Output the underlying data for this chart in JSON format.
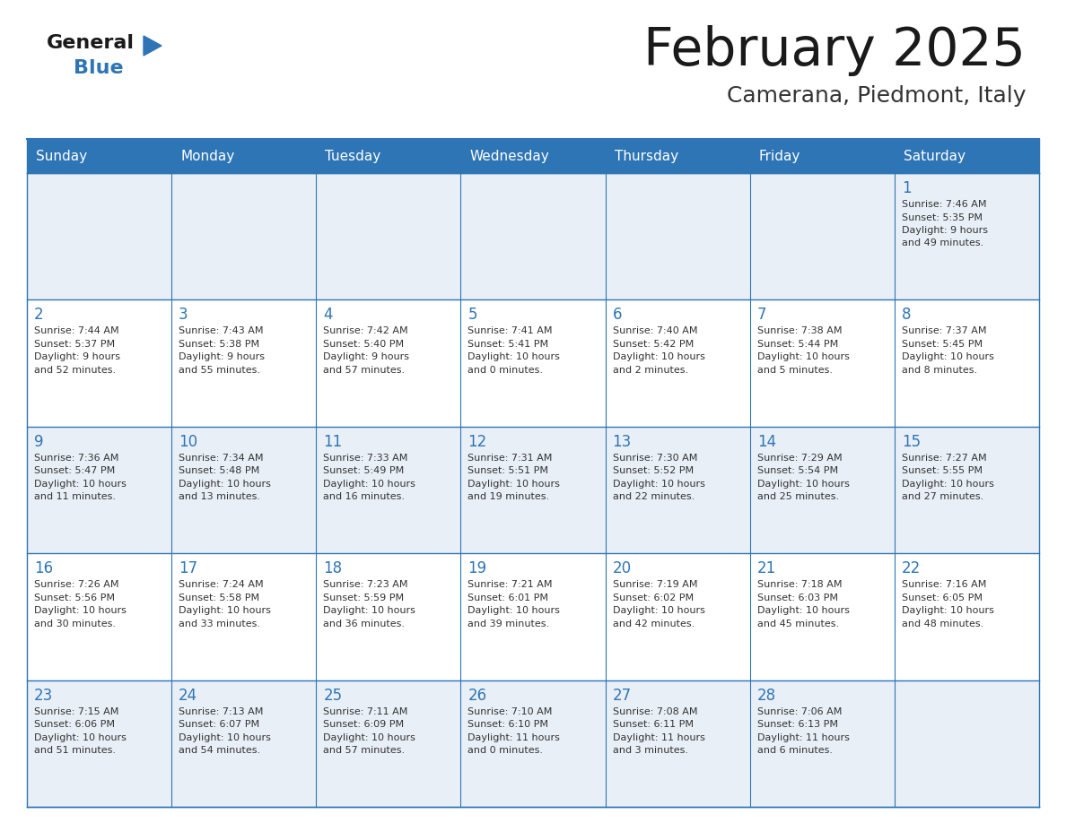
{
  "title": "February 2025",
  "subtitle": "Camerana, Piedmont, Italy",
  "days_of_week": [
    "Sunday",
    "Monday",
    "Tuesday",
    "Wednesday",
    "Thursday",
    "Friday",
    "Saturday"
  ],
  "header_bg": "#2E75B6",
  "header_text": "#FFFFFF",
  "cell_bg_odd": "#E9EFF7",
  "cell_bg_even": "#FFFFFF",
  "border_color": "#2E75B6",
  "text_color": "#333333",
  "day_num_color": "#2E75B6",
  "logo_general_color": "#1A1A1A",
  "logo_blue_color": "#2E75B6",
  "logo_triangle_color": "#2E75B6",
  "title_color": "#1A1A1A",
  "subtitle_color": "#333333",
  "weeks": [
    [
      {
        "day": null
      },
      {
        "day": null
      },
      {
        "day": null
      },
      {
        "day": null
      },
      {
        "day": null
      },
      {
        "day": null
      },
      {
        "day": 1,
        "sunrise": "7:46 AM",
        "sunset": "5:35 PM",
        "daylight": "9 hours and 49 minutes."
      }
    ],
    [
      {
        "day": 2,
        "sunrise": "7:44 AM",
        "sunset": "5:37 PM",
        "daylight": "9 hours and 52 minutes."
      },
      {
        "day": 3,
        "sunrise": "7:43 AM",
        "sunset": "5:38 PM",
        "daylight": "9 hours and 55 minutes."
      },
      {
        "day": 4,
        "sunrise": "7:42 AM",
        "sunset": "5:40 PM",
        "daylight": "9 hours and 57 minutes."
      },
      {
        "day": 5,
        "sunrise": "7:41 AM",
        "sunset": "5:41 PM",
        "daylight": "10 hours and 0 minutes."
      },
      {
        "day": 6,
        "sunrise": "7:40 AM",
        "sunset": "5:42 PM",
        "daylight": "10 hours and 2 minutes."
      },
      {
        "day": 7,
        "sunrise": "7:38 AM",
        "sunset": "5:44 PM",
        "daylight": "10 hours and 5 minutes."
      },
      {
        "day": 8,
        "sunrise": "7:37 AM",
        "sunset": "5:45 PM",
        "daylight": "10 hours and 8 minutes."
      }
    ],
    [
      {
        "day": 9,
        "sunrise": "7:36 AM",
        "sunset": "5:47 PM",
        "daylight": "10 hours and 11 minutes."
      },
      {
        "day": 10,
        "sunrise": "7:34 AM",
        "sunset": "5:48 PM",
        "daylight": "10 hours and 13 minutes."
      },
      {
        "day": 11,
        "sunrise": "7:33 AM",
        "sunset": "5:49 PM",
        "daylight": "10 hours and 16 minutes."
      },
      {
        "day": 12,
        "sunrise": "7:31 AM",
        "sunset": "5:51 PM",
        "daylight": "10 hours and 19 minutes."
      },
      {
        "day": 13,
        "sunrise": "7:30 AM",
        "sunset": "5:52 PM",
        "daylight": "10 hours and 22 minutes."
      },
      {
        "day": 14,
        "sunrise": "7:29 AM",
        "sunset": "5:54 PM",
        "daylight": "10 hours and 25 minutes."
      },
      {
        "day": 15,
        "sunrise": "7:27 AM",
        "sunset": "5:55 PM",
        "daylight": "10 hours and 27 minutes."
      }
    ],
    [
      {
        "day": 16,
        "sunrise": "7:26 AM",
        "sunset": "5:56 PM",
        "daylight": "10 hours and 30 minutes."
      },
      {
        "day": 17,
        "sunrise": "7:24 AM",
        "sunset": "5:58 PM",
        "daylight": "10 hours and 33 minutes."
      },
      {
        "day": 18,
        "sunrise": "7:23 AM",
        "sunset": "5:59 PM",
        "daylight": "10 hours and 36 minutes."
      },
      {
        "day": 19,
        "sunrise": "7:21 AM",
        "sunset": "6:01 PM",
        "daylight": "10 hours and 39 minutes."
      },
      {
        "day": 20,
        "sunrise": "7:19 AM",
        "sunset": "6:02 PM",
        "daylight": "10 hours and 42 minutes."
      },
      {
        "day": 21,
        "sunrise": "7:18 AM",
        "sunset": "6:03 PM",
        "daylight": "10 hours and 45 minutes."
      },
      {
        "day": 22,
        "sunrise": "7:16 AM",
        "sunset": "6:05 PM",
        "daylight": "10 hours and 48 minutes."
      }
    ],
    [
      {
        "day": 23,
        "sunrise": "7:15 AM",
        "sunset": "6:06 PM",
        "daylight": "10 hours and 51 minutes."
      },
      {
        "day": 24,
        "sunrise": "7:13 AM",
        "sunset": "6:07 PM",
        "daylight": "10 hours and 54 minutes."
      },
      {
        "day": 25,
        "sunrise": "7:11 AM",
        "sunset": "6:09 PM",
        "daylight": "10 hours and 57 minutes."
      },
      {
        "day": 26,
        "sunrise": "7:10 AM",
        "sunset": "6:10 PM",
        "daylight": "11 hours and 0 minutes."
      },
      {
        "day": 27,
        "sunrise": "7:08 AM",
        "sunset": "6:11 PM",
        "daylight": "11 hours and 3 minutes."
      },
      {
        "day": 28,
        "sunrise": "7:06 AM",
        "sunset": "6:13 PM",
        "daylight": "11 hours and 6 minutes."
      },
      {
        "day": null
      }
    ]
  ]
}
